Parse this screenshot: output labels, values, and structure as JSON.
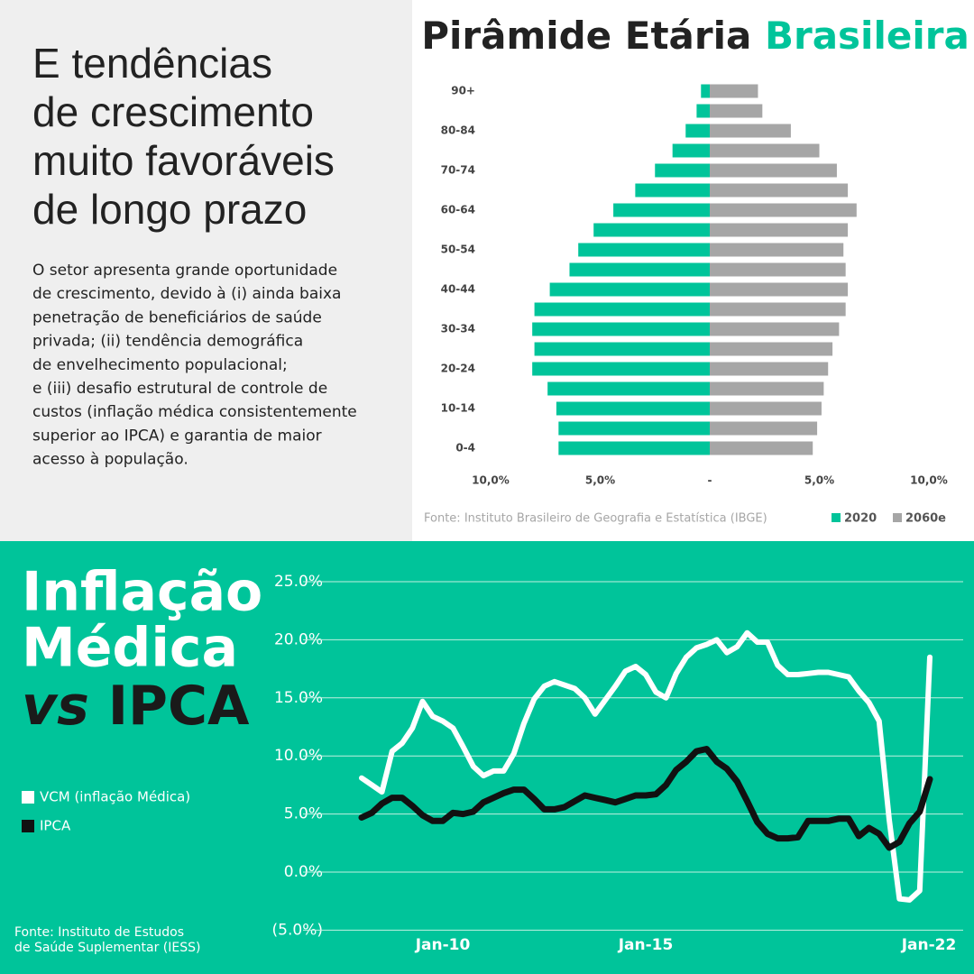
{
  "intro": {
    "heading": [
      "E tendências",
      "de crescimento",
      "muito favoráveis",
      "de longo prazo"
    ],
    "body": [
      "O setor apresenta grande oportunidade",
      "de crescimento, devido à (i) ainda baixa",
      "penetração de beneficiários de saúde",
      "privada; (ii) tendência demográfica",
      "de envelhecimento populacional;",
      "e (iii) desafio estrutural de controle de",
      "custos (inflação médica consistentemente",
      "superior ao IPCA) e garantia de maior",
      "acesso à população."
    ]
  },
  "chart_data": [
    {
      "type": "pyramid",
      "title": "Pirâmide Etária",
      "title_highlight": "Brasileira",
      "categories": [
        "0-4",
        null,
        "10-14",
        null,
        "20-24",
        null,
        "30-34",
        null,
        "40-44",
        null,
        "50-54",
        null,
        "60-64",
        null,
        "70-74",
        null,
        "80-84",
        null,
        "90+"
      ],
      "series": [
        {
          "name": "2020",
          "color": "#00c49a",
          "values": [
            -6.9,
            -6.9,
            -7.0,
            -7.4,
            -8.1,
            -8.0,
            -8.1,
            -8.0,
            -7.3,
            -6.4,
            -6.0,
            -5.3,
            -4.4,
            -3.4,
            -2.5,
            -1.7,
            -1.1,
            -0.6,
            -0.4
          ]
        },
        {
          "name": "2060e",
          "color": "#a6a6a6",
          "values": [
            4.7,
            4.9,
            5.1,
            5.2,
            5.4,
            5.6,
            5.9,
            6.2,
            6.3,
            6.2,
            6.1,
            6.3,
            6.7,
            6.3,
            5.8,
            5.0,
            3.7,
            2.4,
            2.2
          ]
        }
      ],
      "xlim": [
        -10,
        10
      ],
      "xticks": [
        {
          "value": -10,
          "label": "10,0%"
        },
        {
          "value": -5,
          "label": "5,0%"
        },
        {
          "value": 0,
          "label": "-"
        },
        {
          "value": 5,
          "label": "5,0%"
        },
        {
          "value": 10,
          "label": "10,0%"
        }
      ],
      "source": "Fonte: Instituto Brasileiro de Geografia e Estatística (IBGE)"
    },
    {
      "type": "line",
      "title_lines": [
        "Inflação",
        "Médica"
      ],
      "title_tail": [
        "vs",
        "IPCA"
      ],
      "x": [
        2008,
        2008.25,
        2008.5,
        2008.75,
        2009,
        2009.25,
        2009.5,
        2009.75,
        2010,
        2010.25,
        2010.5,
        2010.75,
        2011,
        2011.25,
        2011.5,
        2011.75,
        2012,
        2012.25,
        2012.5,
        2012.75,
        2013,
        2013.25,
        2013.5,
        2013.75,
        2014,
        2014.25,
        2014.5,
        2014.75,
        2015,
        2015.25,
        2015.5,
        2015.75,
        2016,
        2016.25,
        2016.5,
        2016.75,
        2017,
        2017.25,
        2017.5,
        2017.75,
        2018,
        2018.25,
        2018.5,
        2018.75,
        2019,
        2019.25,
        2019.5,
        2019.75,
        2020,
        2020.25,
        2020.5,
        2020.75,
        2021,
        2021.25,
        2021.5,
        2021.75,
        2022
      ],
      "series": [
        {
          "name": "VCM (inflação Médica)",
          "color": "#ffffff",
          "values": [
            8.1,
            7.5,
            6.9,
            10.4,
            11.1,
            12.4,
            14.7,
            13.4,
            13.0,
            12.4,
            10.8,
            9.1,
            8.3,
            8.7,
            8.7,
            10.2,
            12.8,
            14.9,
            16.0,
            16.4,
            16.1,
            15.8,
            15.0,
            13.6,
            14.8,
            16.0,
            17.3,
            17.7,
            17.0,
            15.5,
            15.0,
            17.1,
            18.5,
            19.3,
            19.6,
            20.0,
            18.9,
            19.4,
            20.6,
            19.8,
            19.8,
            17.8,
            17.0,
            17.0,
            17.1,
            17.2,
            17.2,
            17.0,
            16.8,
            15.6,
            14.6,
            13.0,
            4.5,
            -2.3,
            -2.4,
            -1.6,
            18.5
          ]
        },
        {
          "name": "IPCA",
          "color": "#111111",
          "values": [
            4.7,
            5.1,
            5.9,
            6.4,
            6.4,
            5.7,
            4.9,
            4.4,
            4.4,
            5.1,
            5.0,
            5.2,
            6.0,
            6.4,
            6.8,
            7.1,
            7.1,
            6.3,
            5.4,
            5.4,
            5.6,
            6.1,
            6.6,
            6.4,
            6.2,
            6.0,
            6.3,
            6.6,
            6.6,
            6.7,
            7.5,
            8.8,
            9.5,
            10.4,
            10.6,
            9.5,
            8.9,
            7.8,
            6.1,
            4.3,
            3.3,
            2.9,
            2.9,
            3.0,
            4.4,
            4.4,
            4.4,
            4.6,
            4.6,
            3.1,
            3.8,
            3.3,
            2.1,
            2.6,
            4.2,
            5.2,
            8.0
          ]
        }
      ],
      "xlim": [
        2008,
        2022
      ],
      "xticks": [
        {
          "value": 2010,
          "label": "Jan-10"
        },
        {
          "value": 2015,
          "label": "Jan-15"
        },
        {
          "value": 2022,
          "label": "Jan-22"
        }
      ],
      "ylim": [
        -5,
        25
      ],
      "yticks": [
        {
          "value": -5,
          "label": "(5.0%)"
        },
        {
          "value": 0,
          "label": "0.0%"
        },
        {
          "value": 5,
          "label": "5.0%"
        },
        {
          "value": 10,
          "label": "10.0%"
        },
        {
          "value": 15,
          "label": "15.0%"
        },
        {
          "value": 20,
          "label": "20.0%"
        },
        {
          "value": 25,
          "label": "25.0%"
        }
      ],
      "grid": true,
      "source": [
        "Fonte: Instituto de Estudos",
        "de Saúde Suplementar (IESS)"
      ]
    }
  ]
}
